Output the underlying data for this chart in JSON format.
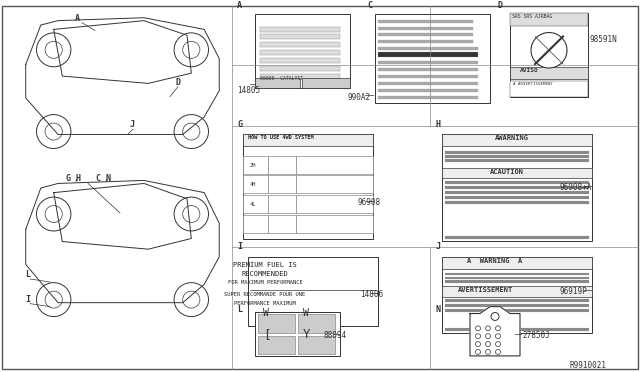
{
  "bg_color": "#ffffff",
  "line_color": "#333333",
  "title_ref": "R9910021",
  "part_numbers": {
    "A_label": "14805",
    "C_label": "990A2",
    "D_label": "98591N",
    "G_label": "96908",
    "H_label": "96908+A",
    "I_label": "14806",
    "J_label": "96919P",
    "L_label": "88094",
    "N_label": "27850J"
  },
  "section_letters": [
    "A",
    "C",
    "D",
    "G",
    "H",
    "I",
    "J",
    "L",
    "N"
  ],
  "car_labels_top": [
    "A",
    "D",
    "J"
  ],
  "car_labels_bottom": [
    "G",
    "H",
    "C",
    "N",
    "L",
    "I"
  ],
  "grid_lines": true
}
